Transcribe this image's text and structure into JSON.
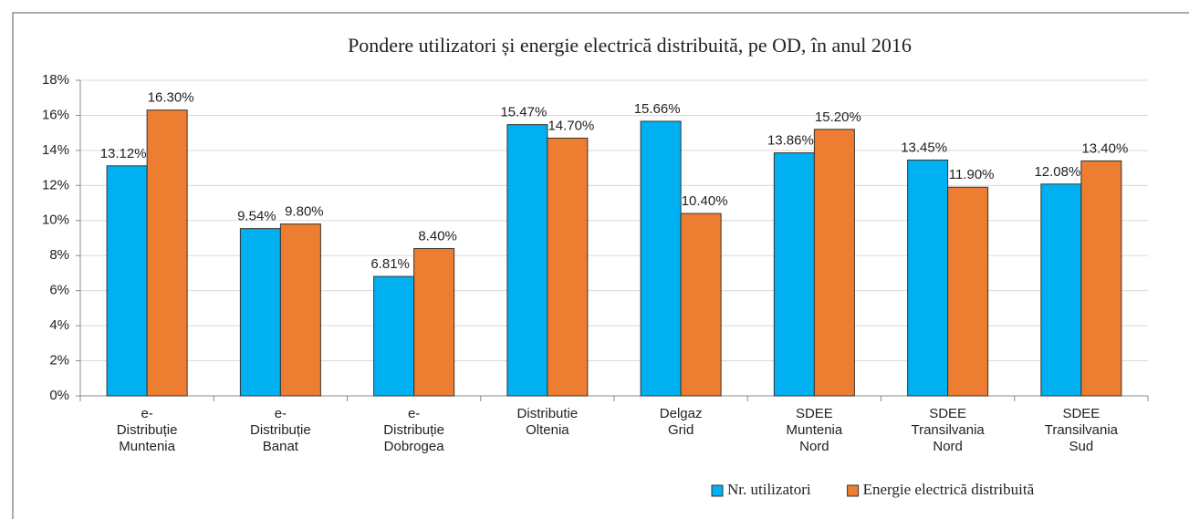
{
  "chart_data": {
    "type": "bar",
    "title": "Pondere utilizatori  și energie electrică distribuită, pe OD, în anul 2016",
    "categories": [
      "e-\nDistribuție\nMuntenia",
      "e-\nDistribuție\nBanat",
      "e-\nDistribuție\nDobrogea",
      "Distributie\nOltenia",
      "Delgaz\nGrid",
      "SDEE\nMuntenia\nNord",
      "SDEE\nTransilvania\nNord",
      "SDEE\nTransilvania\nSud"
    ],
    "series": [
      {
        "name": "Nr. utilizatori",
        "color": "#00b0f0",
        "values": [
          13.12,
          9.54,
          6.81,
          15.47,
          15.66,
          13.86,
          13.45,
          12.08
        ],
        "value_labels": [
          "13.12%",
          "9.54%",
          "6.81%",
          "15.47%",
          "15.66%",
          "13.86%",
          "13.45%",
          "12.08%"
        ]
      },
      {
        "name": "Energie electrică distribuită",
        "color": "#ed7d31",
        "values": [
          16.3,
          9.8,
          8.4,
          14.7,
          10.4,
          15.2,
          11.9,
          13.4
        ],
        "value_labels": [
          "16.30%",
          "9.80%",
          "8.40%",
          "14.70%",
          "10.40%",
          "15.20%",
          "11.90%",
          "13.40%"
        ]
      }
    ],
    "ylim": [
      0,
      18
    ],
    "yticks": [
      {
        "value": 0,
        "label": "0%"
      },
      {
        "value": 2,
        "label": "2%"
      },
      {
        "value": 4,
        "label": "4%"
      },
      {
        "value": 6,
        "label": "6%"
      },
      {
        "value": 8,
        "label": "8%"
      },
      {
        "value": 10,
        "label": "10%"
      },
      {
        "value": 12,
        "label": "12%"
      },
      {
        "value": 14,
        "label": "14%"
      },
      {
        "value": 16,
        "label": "16%"
      },
      {
        "value": 18,
        "label": "18%"
      }
    ],
    "grid": true,
    "legend": "bottom-right"
  }
}
